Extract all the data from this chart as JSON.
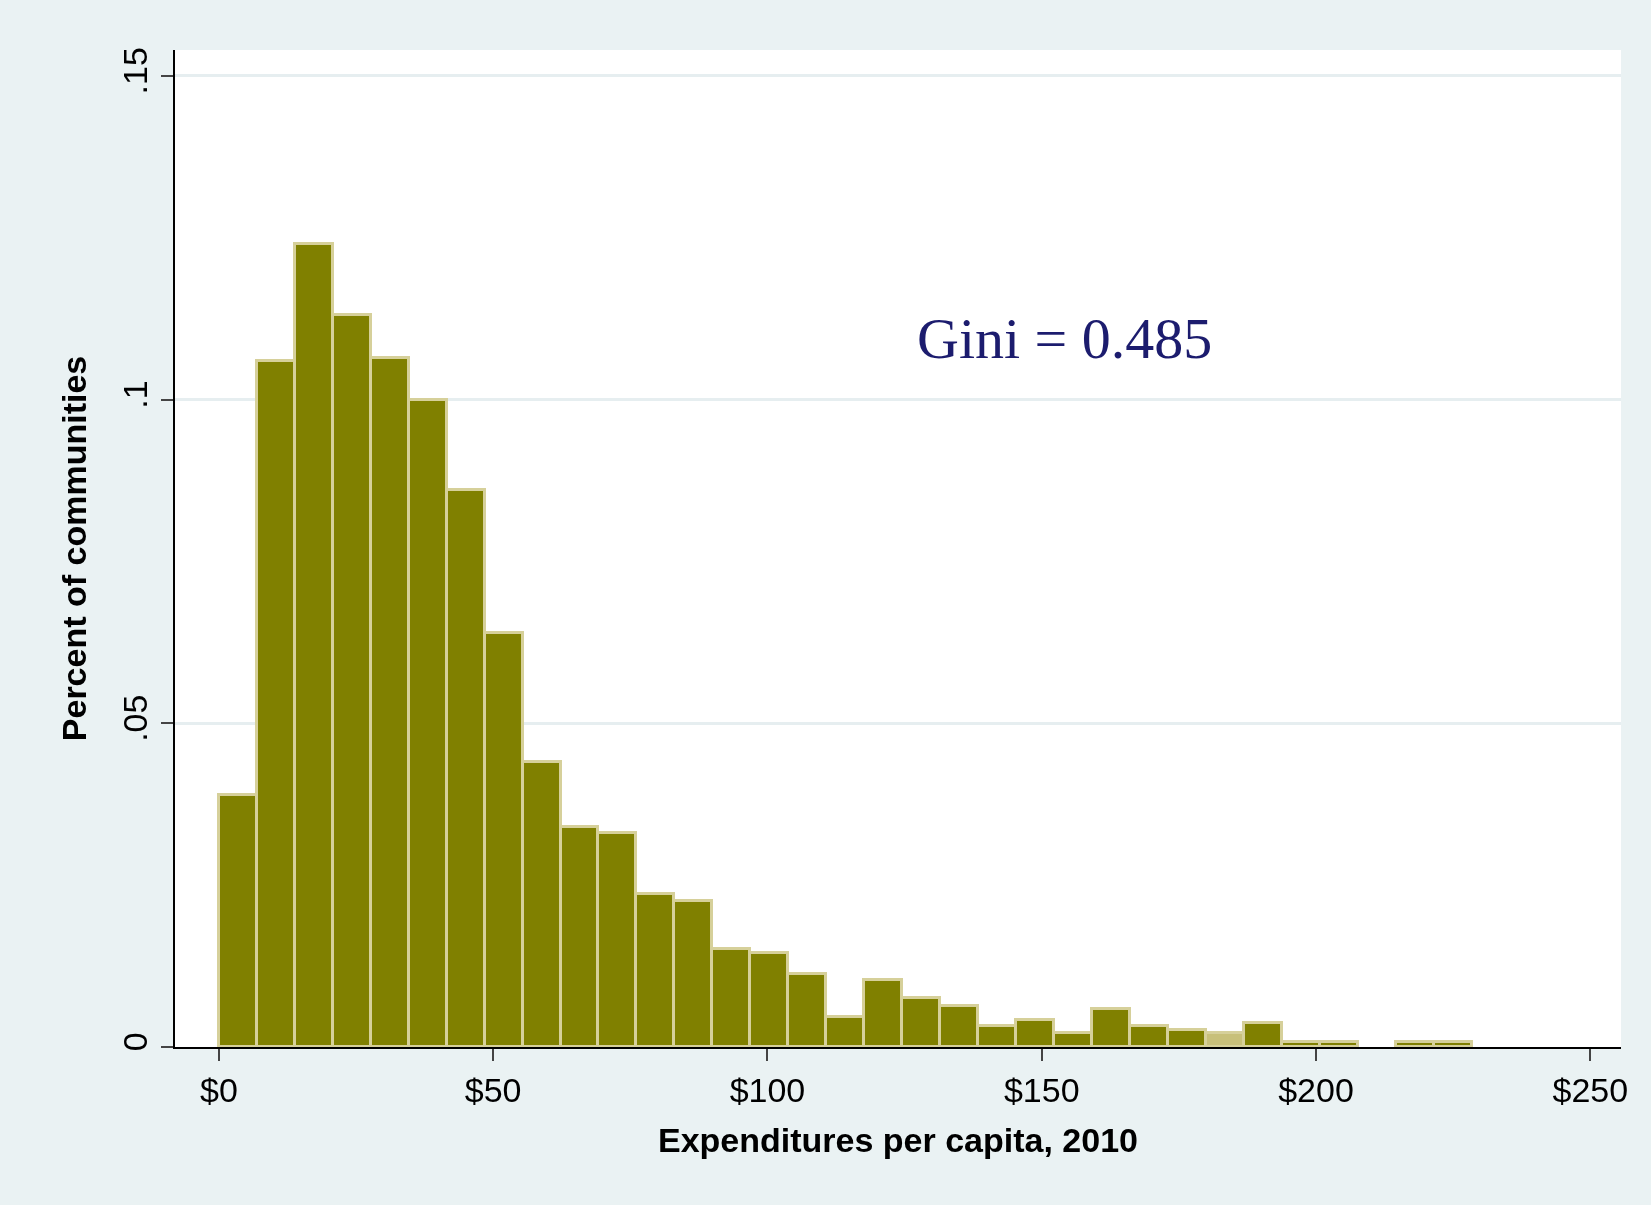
{
  "chart_data": {
    "type": "histogram",
    "xlabel": "Expenditures per capita, 2010",
    "ylabel": "Percent of communities",
    "annotations": [
      "Gini = 0.485"
    ],
    "bins": [
      0,
      6.92,
      13.84,
      20.76,
      27.68,
      34.6,
      41.52,
      48.44,
      55.36,
      62.28,
      69.2,
      76.12,
      83.04,
      89.96,
      96.88,
      103.8,
      110.72,
      117.64,
      124.56,
      131.48,
      138.4,
      145.32,
      152.24,
      159.16,
      166.08,
      173,
      179.92,
      186.84,
      193.76,
      200.68,
      207.6,
      214.52,
      221.44,
      228.36
    ],
    "values": [
      0.039,
      0.106,
      0.124,
      0.113,
      0.1065,
      0.1,
      0.086,
      0.064,
      0.044,
      0.034,
      0.033,
      0.0237,
      0.0226,
      0.0151,
      0.0145,
      0.0112,
      0.0047,
      0.0103,
      0.0075,
      0.0064,
      0.0032,
      0.0041,
      0.0021,
      0.0059,
      0.0032,
      0.0026,
      0.0021,
      0.0037,
      0.0007,
      0.0007,
      0,
      0.0007,
      0.0007
    ],
    "colors": [
      "#808000",
      "#808000",
      "#808000",
      "#808000",
      "#808000",
      "#808000",
      "#808000",
      "#808000",
      "#808000",
      "#808000",
      "#808000",
      "#808000",
      "#808000",
      "#808000",
      "#808000",
      "#808000",
      "#808000",
      "#808000",
      "#808000",
      "#808000",
      "#808000",
      "#808000",
      "#808000",
      "#808000",
      "#808000",
      "#808000",
      "#c8c07a",
      "#808000",
      "#808000",
      "#808000",
      "#808000",
      "#808000",
      "#808000"
    ],
    "xlim": [
      -8,
      255.6
    ],
    "ylim": [
      0,
      0.154
    ],
    "xticks": [
      {
        "value": 0,
        "label": "$0"
      },
      {
        "value": 50,
        "label": "$50"
      },
      {
        "value": 100,
        "label": "$100"
      },
      {
        "value": 150,
        "label": "$150"
      },
      {
        "value": 200,
        "label": "$200"
      },
      {
        "value": 250,
        "label": "$250"
      }
    ],
    "yticks": [
      {
        "value": 0,
        "label": "0"
      },
      {
        "value": 0.05,
        "label": ".05"
      },
      {
        "value": 0.1,
        "label": ".1"
      },
      {
        "value": 0.15,
        "label": ".15"
      }
    ],
    "grid": "y"
  }
}
